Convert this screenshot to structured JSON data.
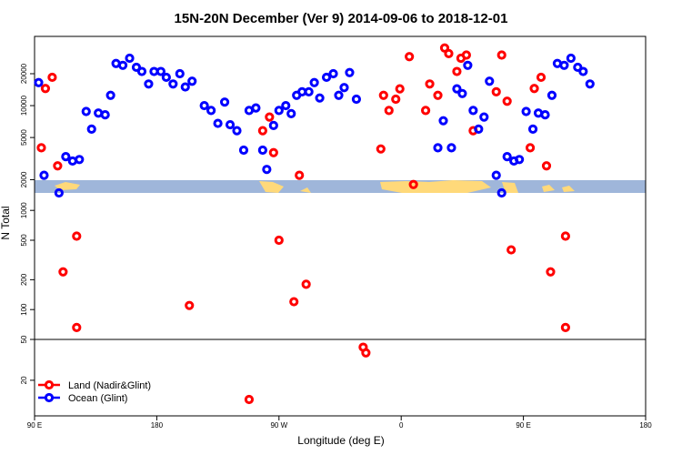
{
  "chart_data": {
    "type": "scatter",
    "title": "15N-20N December (Ver 9)   2014-09-06 to 2018-12-01",
    "xlabel": "Longitude (deg E)",
    "ylabel": "N Total",
    "x_tick_labels": [
      "90 E",
      "180",
      "90 W",
      "0",
      "90 E",
      "180"
    ],
    "x_ticks": [
      90,
      180,
      270,
      360,
      450,
      540
    ],
    "xlim": [
      90,
      540
    ],
    "y_scale": "log",
    "panels": [
      {
        "name": "upper",
        "ylim": [
          1500,
          45000
        ],
        "y_tick_labels": [
          "2000",
          "5000",
          "10000",
          "20000"
        ],
        "y_ticks": [
          2000,
          5000,
          10000,
          20000
        ]
      },
      {
        "name": "middle",
        "ylim": [
          50,
          1500
        ],
        "y_tick_labels": [
          "50",
          "100",
          "200",
          "500",
          "1000"
        ],
        "y_ticks": [
          50,
          100,
          200,
          500,
          1000
        ]
      },
      {
        "name": "lower",
        "ylim": [
          9,
          50
        ],
        "y_tick_labels": [
          "20"
        ],
        "y_ticks": [
          20
        ]
      }
    ],
    "grid": false,
    "legend_position": "bottom-left",
    "series": [
      {
        "name": "Land (Nadir&Glint)",
        "color": "#ff0000",
        "points": [
          [
            95,
            4000
          ],
          [
            98,
            14500
          ],
          [
            103,
            18500
          ],
          [
            107,
            2700
          ],
          [
            111,
            240
          ],
          [
            121,
            66
          ],
          [
            121,
            550
          ],
          [
            204,
            110
          ],
          [
            248,
            13
          ],
          [
            258,
            5800
          ],
          [
            263,
            7800
          ],
          [
            266,
            3600
          ],
          [
            270,
            500
          ],
          [
            281,
            120
          ],
          [
            285,
            2200
          ],
          [
            290,
            180
          ],
          [
            332,
            42
          ],
          [
            334,
            37
          ],
          [
            345,
            3900
          ],
          [
            347,
            12500
          ],
          [
            351,
            9000
          ],
          [
            356,
            11500
          ],
          [
            359,
            14400
          ],
          [
            369,
            1800
          ],
          [
            366,
            29000
          ],
          [
            378,
            9000
          ],
          [
            381,
            16000
          ],
          [
            387,
            12500
          ],
          [
            392,
            35000
          ],
          [
            395,
            31000
          ],
          [
            401,
            21000
          ],
          [
            404,
            28000
          ],
          [
            408,
            30000
          ],
          [
            413,
            5800
          ],
          [
            430,
            13500
          ],
          [
            434,
            30000
          ],
          [
            438,
            11000
          ],
          [
            441,
            400
          ],
          [
            455,
            4000
          ],
          [
            458,
            14500
          ],
          [
            463,
            18500
          ],
          [
            467,
            2700
          ],
          [
            470,
            240
          ],
          [
            481,
            66
          ],
          [
            481,
            550
          ]
        ]
      },
      {
        "name": "Ocean (Glint)",
        "color": "#0000ff",
        "points": [
          [
            93,
            16500
          ],
          [
            97,
            2200
          ],
          [
            108,
            1500
          ],
          [
            113,
            3300
          ],
          [
            118,
            3000
          ],
          [
            123,
            3100
          ],
          [
            128,
            8800
          ],
          [
            132,
            6000
          ],
          [
            137,
            8500
          ],
          [
            142,
            8200
          ],
          [
            146,
            12500
          ],
          [
            150,
            25000
          ],
          [
            155,
            24000
          ],
          [
            160,
            28000
          ],
          [
            165,
            23000
          ],
          [
            169,
            21000
          ],
          [
            174,
            16000
          ],
          [
            178,
            21000
          ],
          [
            183,
            21000
          ],
          [
            187,
            18500
          ],
          [
            192,
            16000
          ],
          [
            197,
            20000
          ],
          [
            201,
            15000
          ],
          [
            206,
            17000
          ],
          [
            215,
            10000
          ],
          [
            220,
            9000
          ],
          [
            225,
            6800
          ],
          [
            230,
            10800
          ],
          [
            234,
            6600
          ],
          [
            239,
            5800
          ],
          [
            244,
            3800
          ],
          [
            248,
            9000
          ],
          [
            253,
            9500
          ],
          [
            258,
            3800
          ],
          [
            261,
            2500
          ],
          [
            266,
            6500
          ],
          [
            270,
            9000
          ],
          [
            275,
            10000
          ],
          [
            279,
            8400
          ],
          [
            283,
            12500
          ],
          [
            287,
            13500
          ],
          [
            292,
            13500
          ],
          [
            296,
            16500
          ],
          [
            300,
            11800
          ],
          [
            305,
            18500
          ],
          [
            310,
            20000
          ],
          [
            314,
            12500
          ],
          [
            318,
            14800
          ],
          [
            322,
            20500
          ],
          [
            327,
            11500
          ],
          [
            387,
            4000
          ],
          [
            391,
            7200
          ],
          [
            397,
            4000
          ],
          [
            401,
            14400
          ],
          [
            405,
            13000
          ],
          [
            409,
            24000
          ],
          [
            413,
            9000
          ],
          [
            417,
            6000
          ],
          [
            421,
            7800
          ],
          [
            425,
            17000
          ],
          [
            430,
            2200
          ],
          [
            434,
            1500
          ],
          [
            438,
            3300
          ],
          [
            443,
            3000
          ],
          [
            447,
            3100
          ],
          [
            452,
            8800
          ],
          [
            457,
            6000
          ],
          [
            461,
            8500
          ],
          [
            466,
            8200
          ],
          [
            471,
            12500
          ],
          [
            475,
            25000
          ],
          [
            480,
            24000
          ],
          [
            485,
            28000
          ],
          [
            490,
            23000
          ],
          [
            494,
            21000
          ],
          [
            499,
            16000
          ]
        ]
      }
    ]
  }
}
